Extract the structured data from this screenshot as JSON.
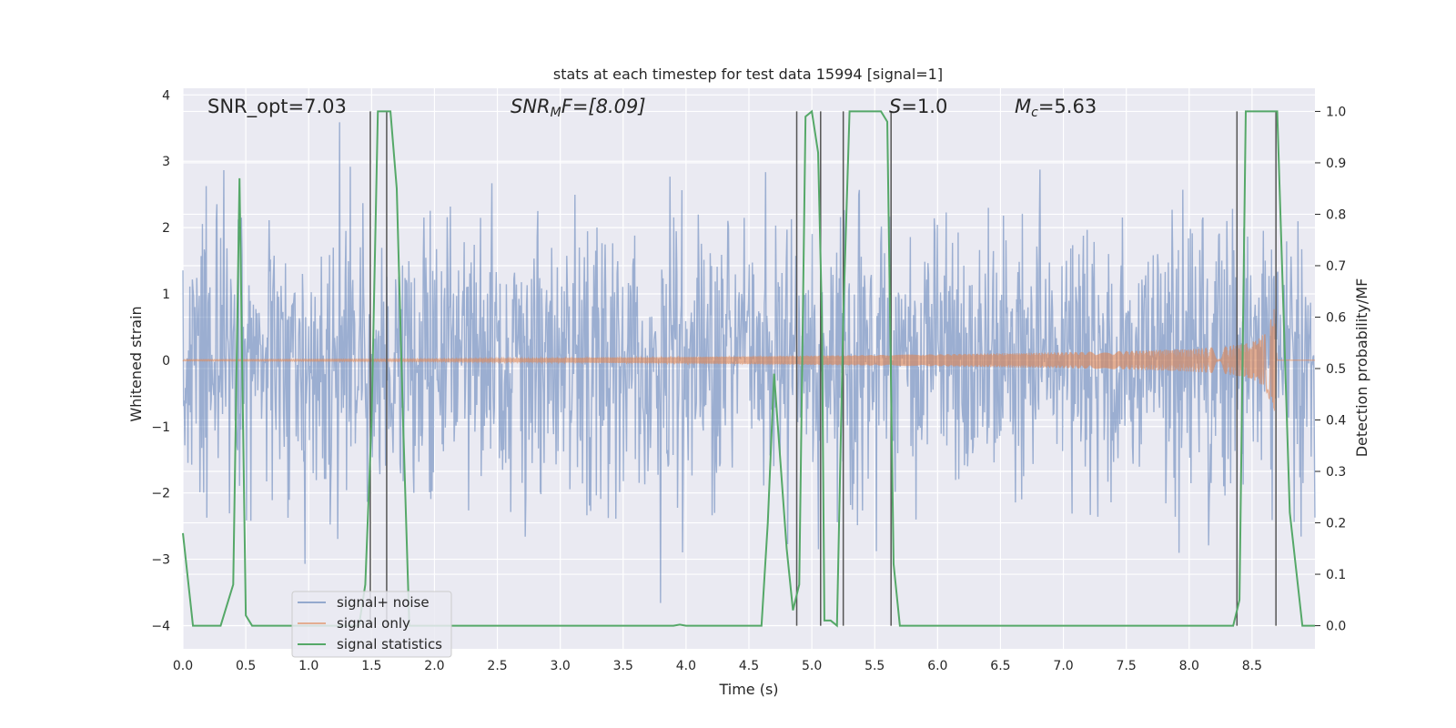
{
  "chart_data": {
    "type": "line",
    "title": "stats at each timestep for test data 15994 [signal=1]",
    "xlabel": "Time (s)",
    "ylabel_left": "Whitened strain",
    "ylabel_right": "Detection probability/MF",
    "xlim": [
      0,
      9.0
    ],
    "ylim_left": [
      -4.35,
      4.1
    ],
    "ylim_right": [
      -0.045,
      1.045
    ],
    "x_ticks": [
      "0.0",
      "0.5",
      "1.0",
      "1.5",
      "2.0",
      "2.5",
      "3.0",
      "3.5",
      "4.0",
      "4.5",
      "5.0",
      "5.5",
      "6.0",
      "6.5",
      "7.0",
      "7.5",
      "8.0",
      "8.5"
    ],
    "y_ticks_left": [
      "4",
      "3",
      "2",
      "1",
      "0",
      "−1",
      "−2",
      "−3",
      "−4"
    ],
    "y_ticks_right": [
      "1.0",
      "0.9",
      "0.8",
      "0.7",
      "0.6",
      "0.5",
      "0.4",
      "0.3",
      "0.2",
      "0.1",
      "0.0"
    ],
    "grid": true,
    "legend_position": "lower-left",
    "annotations": {
      "snr_opt": "SNR_opt=7.03",
      "snr_mf_main": "SNR",
      "snr_mf_sub": "M",
      "snr_mf_tail": "F=[8.09]",
      "s_main": "S",
      "s_tail": "=1.0",
      "mc_main": "M",
      "mc_sub": "c",
      "mc_tail": "=5.63"
    },
    "series": [
      {
        "name": "signal+ noise",
        "color": "#4c72b0",
        "axis": "left",
        "description_values": {
          "typical_amplitude": 1.7,
          "max": 3.9,
          "min": -4.0
        }
      },
      {
        "name": "signal only",
        "color": "#dd8452",
        "axis": "left",
        "envelope": {
          "t": [
            0,
            2,
            4,
            5,
            6,
            7,
            7.5,
            8,
            8.3,
            8.5,
            8.6,
            8.68,
            8.7
          ],
          "amp": [
            0.01,
            0.02,
            0.05,
            0.07,
            0.09,
            0.12,
            0.14,
            0.17,
            0.21,
            0.28,
            0.4,
            0.8,
            0
          ]
        }
      },
      {
        "name": "signal statistics",
        "color": "#55a868",
        "axis": "right",
        "x": [
          0.0,
          0.08,
          0.15,
          0.3,
          0.4,
          0.45,
          0.5,
          0.55,
          0.6,
          1.0,
          1.4,
          1.45,
          1.5,
          1.55,
          1.6,
          1.65,
          1.7,
          1.75,
          1.8,
          2.5,
          3.0,
          3.9,
          3.95,
          4.0,
          4.5,
          4.6,
          4.65,
          4.7,
          4.8,
          4.85,
          4.9,
          4.95,
          5.0,
          5.05,
          5.08,
          5.1,
          5.15,
          5.2,
          5.25,
          5.3,
          5.35,
          5.45,
          5.55,
          5.6,
          5.65,
          5.7,
          5.75,
          6.0,
          7.0,
          8.0,
          8.35,
          8.4,
          8.45,
          8.5,
          8.6,
          8.7,
          8.8,
          8.9,
          8.95,
          9.0
        ],
        "y": [
          0.18,
          0.0,
          0.0,
          0.0,
          0.08,
          0.87,
          0.02,
          0.0,
          0.0,
          0.0,
          0.0,
          0.08,
          0.4,
          1.0,
          1.0,
          1.0,
          0.85,
          0.4,
          0.0,
          0.0,
          0.0,
          0.0,
          0.002,
          0.0,
          0.0,
          0.0,
          0.2,
          0.49,
          0.15,
          0.03,
          0.08,
          0.99,
          1.0,
          0.92,
          0.6,
          0.01,
          0.01,
          0.0,
          0.6,
          1.0,
          1.0,
          1.0,
          1.0,
          0.98,
          0.12,
          0.0,
          0.0,
          0.0,
          0.0,
          0.0,
          0.0,
          0.05,
          1.0,
          1.0,
          1.0,
          1.0,
          0.22,
          0.0,
          0.0,
          0.0
        ]
      }
    ],
    "vertical_lines": [
      {
        "x": 1.49,
        "y_top": 1.0
      },
      {
        "x": 1.62,
        "y_top": 1.0
      },
      {
        "x": 4.88,
        "y_top": 1.0
      },
      {
        "x": 5.07,
        "y_top": 1.0
      },
      {
        "x": 5.25,
        "y_top": 1.0
      },
      {
        "x": 5.63,
        "y_top": 1.0
      },
      {
        "x": 8.38,
        "y_top": 1.0
      },
      {
        "x": 8.69,
        "y_top": 1.0
      }
    ]
  }
}
